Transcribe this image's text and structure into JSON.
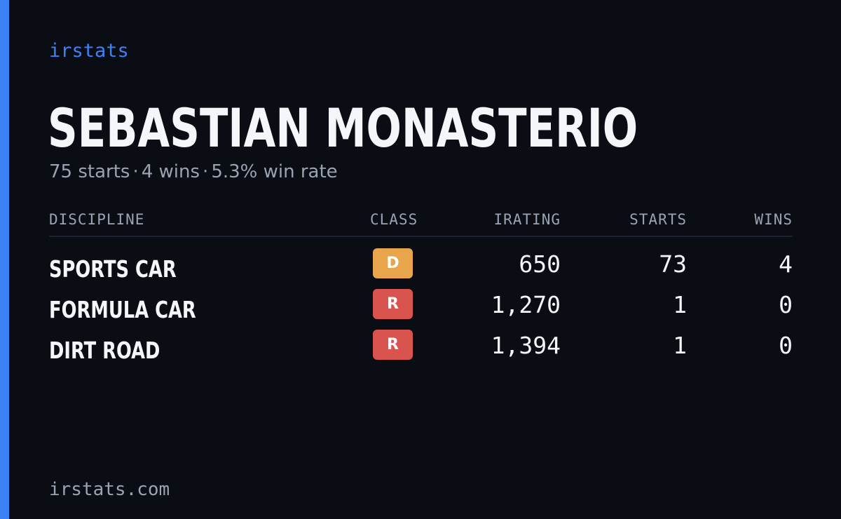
{
  "brand": "irstats",
  "driver": {
    "name": "SEBASTIAN MONASTERIO"
  },
  "summary": {
    "starts": "75 starts",
    "wins": "4 wins",
    "win_rate": "5.3% win rate",
    "separator": "·"
  },
  "table": {
    "headers": {
      "discipline": "DISCIPLINE",
      "class": "CLASS",
      "irating": "IRATING",
      "starts": "STARTS",
      "wins": "WINS"
    },
    "rows": [
      {
        "discipline": "SPORTS CAR",
        "class": "D",
        "class_color": "#e8a54b",
        "irating": "650",
        "starts": "73",
        "wins": "4"
      },
      {
        "discipline": "FORMULA CAR",
        "class": "R",
        "class_color": "#d9534f",
        "irating": "1,270",
        "starts": "1",
        "wins": "0"
      },
      {
        "discipline": "DIRT ROAD",
        "class": "R",
        "class_color": "#d9534f",
        "irating": "1,394",
        "starts": "1",
        "wins": "0"
      }
    ]
  },
  "footer": "irstats.com",
  "colors": {
    "accent": "#3b82f6",
    "background": "#0a0d14"
  }
}
